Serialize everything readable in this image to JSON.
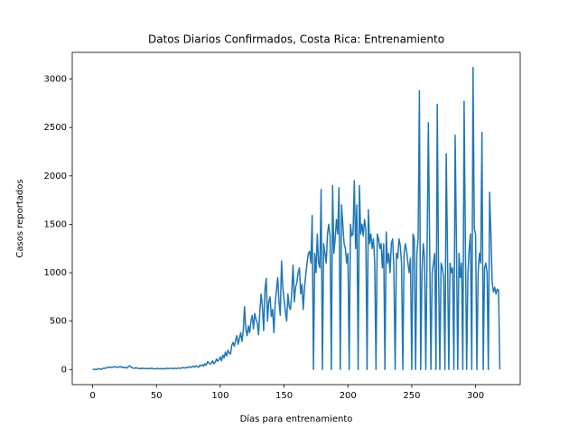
{
  "chart_data": {
    "type": "line",
    "title": "Datos Diarios Confirmados, Costa Rica: Entrenamiento",
    "xlabel": "Días para entrenamiento",
    "ylabel": "Casos reportados",
    "color": "#1f77b4",
    "xlim": [
      -15.95,
      334.95
    ],
    "ylim": [
      -156,
      3276
    ],
    "xticks": [
      0,
      50,
      100,
      150,
      200,
      250,
      300
    ],
    "yticks": [
      0,
      500,
      1000,
      1500,
      2000,
      2500,
      3000
    ],
    "values": [
      1,
      1,
      2,
      0,
      5,
      9,
      5,
      3,
      10,
      14,
      13,
      18,
      23,
      26,
      20,
      25,
      24,
      30,
      27,
      22,
      28,
      25,
      33,
      20,
      24,
      19,
      22,
      15,
      30,
      40,
      25,
      18,
      15,
      12,
      20,
      14,
      10,
      12,
      8,
      15,
      10,
      9,
      12,
      7,
      11,
      8,
      14,
      10,
      9,
      6,
      8,
      12,
      7,
      10,
      9,
      5,
      11,
      8,
      13,
      10,
      9,
      14,
      12,
      8,
      15,
      11,
      10,
      16,
      13,
      12,
      18,
      20,
      15,
      22,
      17,
      25,
      30,
      20,
      28,
      35,
      25,
      40,
      30,
      22,
      45,
      38,
      50,
      35,
      60,
      45,
      80,
      70,
      55,
      65,
      90,
      60,
      75,
      110,
      85,
      100,
      130,
      90,
      150,
      120,
      180,
      140,
      200,
      170,
      160,
      250,
      280,
      240,
      300,
      350,
      260,
      320,
      380,
      290,
      400,
      650,
      420,
      350,
      450,
      380,
      500,
      560,
      420,
      580,
      520,
      480,
      360,
      600,
      780,
      650,
      400,
      820,
      940,
      500,
      700,
      750,
      550,
      620,
      380,
      680,
      820,
      950,
      700,
      560,
      1120,
      850,
      720,
      600,
      500,
      780,
      650,
      620,
      800,
      1080,
      700,
      850,
      900,
      1000,
      1050,
      780,
      880,
      620,
      850,
      980,
      1100,
      1200,
      1220,
      1100,
      1590,
      0,
      1200,
      1000,
      1400,
      1100,
      1050,
      1860,
      0,
      1300,
      1200,
      1100,
      1400,
      1500,
      1380,
      0,
      1900,
      1200,
      1350,
      1550,
      1400,
      1880,
      0,
      1700,
      1500,
      1300,
      1250,
      1100,
      1200,
      0,
      1500,
      1380,
      1400,
      1950,
      1250,
      1700,
      0,
      1900,
      1400,
      1500,
      1380,
      1550,
      1450,
      0,
      1650,
      1300,
      1400,
      1250,
      1350,
      1100,
      0,
      1400,
      1350,
      1250,
      1300,
      1050,
      1300,
      0,
      1420,
      1100,
      1200,
      1000,
      1300,
      1350,
      1050,
      0,
      1200,
      1150,
      1350,
      1280,
      1100,
      0,
      1200,
      1300,
      1220,
      1100,
      1000,
      1150,
      0,
      1400,
      1350,
      0,
      1200,
      1350,
      2880,
      0,
      1000,
      1300,
      1150,
      0,
      1200,
      2550,
      1300,
      0,
      1000,
      1100,
      1200,
      0,
      2740,
      1000,
      0,
      1100,
      1050,
      950,
      0,
      2230,
      1200,
      0,
      1100,
      1000,
      1050,
      0,
      2420,
      1300,
      0,
      1200,
      950,
      1100,
      0,
      2770,
      1300,
      0,
      1000,
      1250,
      1400,
      0,
      3120,
      1450,
      1400,
      0,
      1000,
      1200,
      1100,
      2450,
      0,
      1050,
      1100,
      1000,
      0,
      1830,
      1400,
      900,
      800,
      850,
      780,
      830,
      820,
      0
    ]
  }
}
